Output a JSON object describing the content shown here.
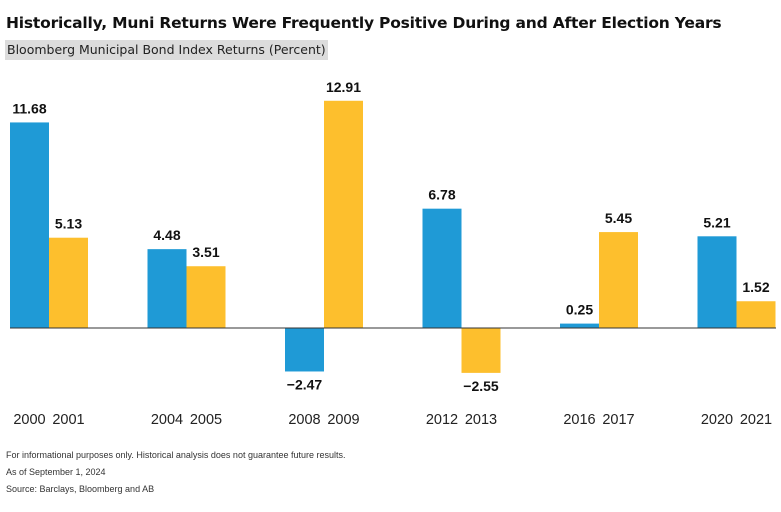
{
  "header": {
    "title": "Historically, Muni Returns Were Frequently Positive During and After Election Years",
    "subtitle": "Bloomberg Municipal Bond Index Returns (Percent)"
  },
  "chart_data": {
    "type": "bar",
    "title": "Historically, Muni Returns Were Frequently Positive During and After Election Years",
    "subtitle": "Bloomberg Municipal Bond Index Returns (Percent)",
    "groups": [
      {
        "bars": [
          {
            "label": "2000",
            "value": 11.68,
            "value_label": "11.68",
            "series": "election"
          },
          {
            "label": "2001",
            "value": 5.13,
            "value_label": "5.13",
            "series": "post"
          }
        ]
      },
      {
        "bars": [
          {
            "label": "2004",
            "value": 4.48,
            "value_label": "4.48",
            "series": "election"
          },
          {
            "label": "2005",
            "value": 3.51,
            "value_label": "3.51",
            "series": "post"
          }
        ]
      },
      {
        "bars": [
          {
            "label": "2008",
            "value": -2.47,
            "value_label": "−2.47",
            "series": "election"
          },
          {
            "label": "2009",
            "value": 12.91,
            "value_label": "12.91",
            "series": "post"
          }
        ]
      },
      {
        "bars": [
          {
            "label": "2012",
            "value": 6.78,
            "value_label": "6.78",
            "series": "election"
          },
          {
            "label": "2013",
            "value": -2.55,
            "value_label": "−2.55",
            "series": "post"
          }
        ]
      },
      {
        "bars": [
          {
            "label": "2016",
            "value": 0.25,
            "value_label": "0.25",
            "series": "election"
          },
          {
            "label": "2017",
            "value": 5.45,
            "value_label": "5.45",
            "series": "post"
          }
        ]
      },
      {
        "bars": [
          {
            "label": "2020",
            "value": 5.21,
            "value_label": "5.21",
            "series": "election"
          },
          {
            "label": "2021",
            "value": 1.52,
            "value_label": "1.52",
            "series": "post"
          }
        ]
      }
    ],
    "colors": {
      "election": "#1f9ad6",
      "post": "#fdbf2d",
      "baseline": "#333333"
    },
    "ylim": [
      -2.55,
      12.91
    ],
    "grid": false,
    "legend": "none"
  },
  "footnotes": [
    "For informational purposes only. Historical analysis does not guarantee future results.",
    "As of September 1, 2024",
    "Source: Barclays, Bloomberg and AB"
  ]
}
